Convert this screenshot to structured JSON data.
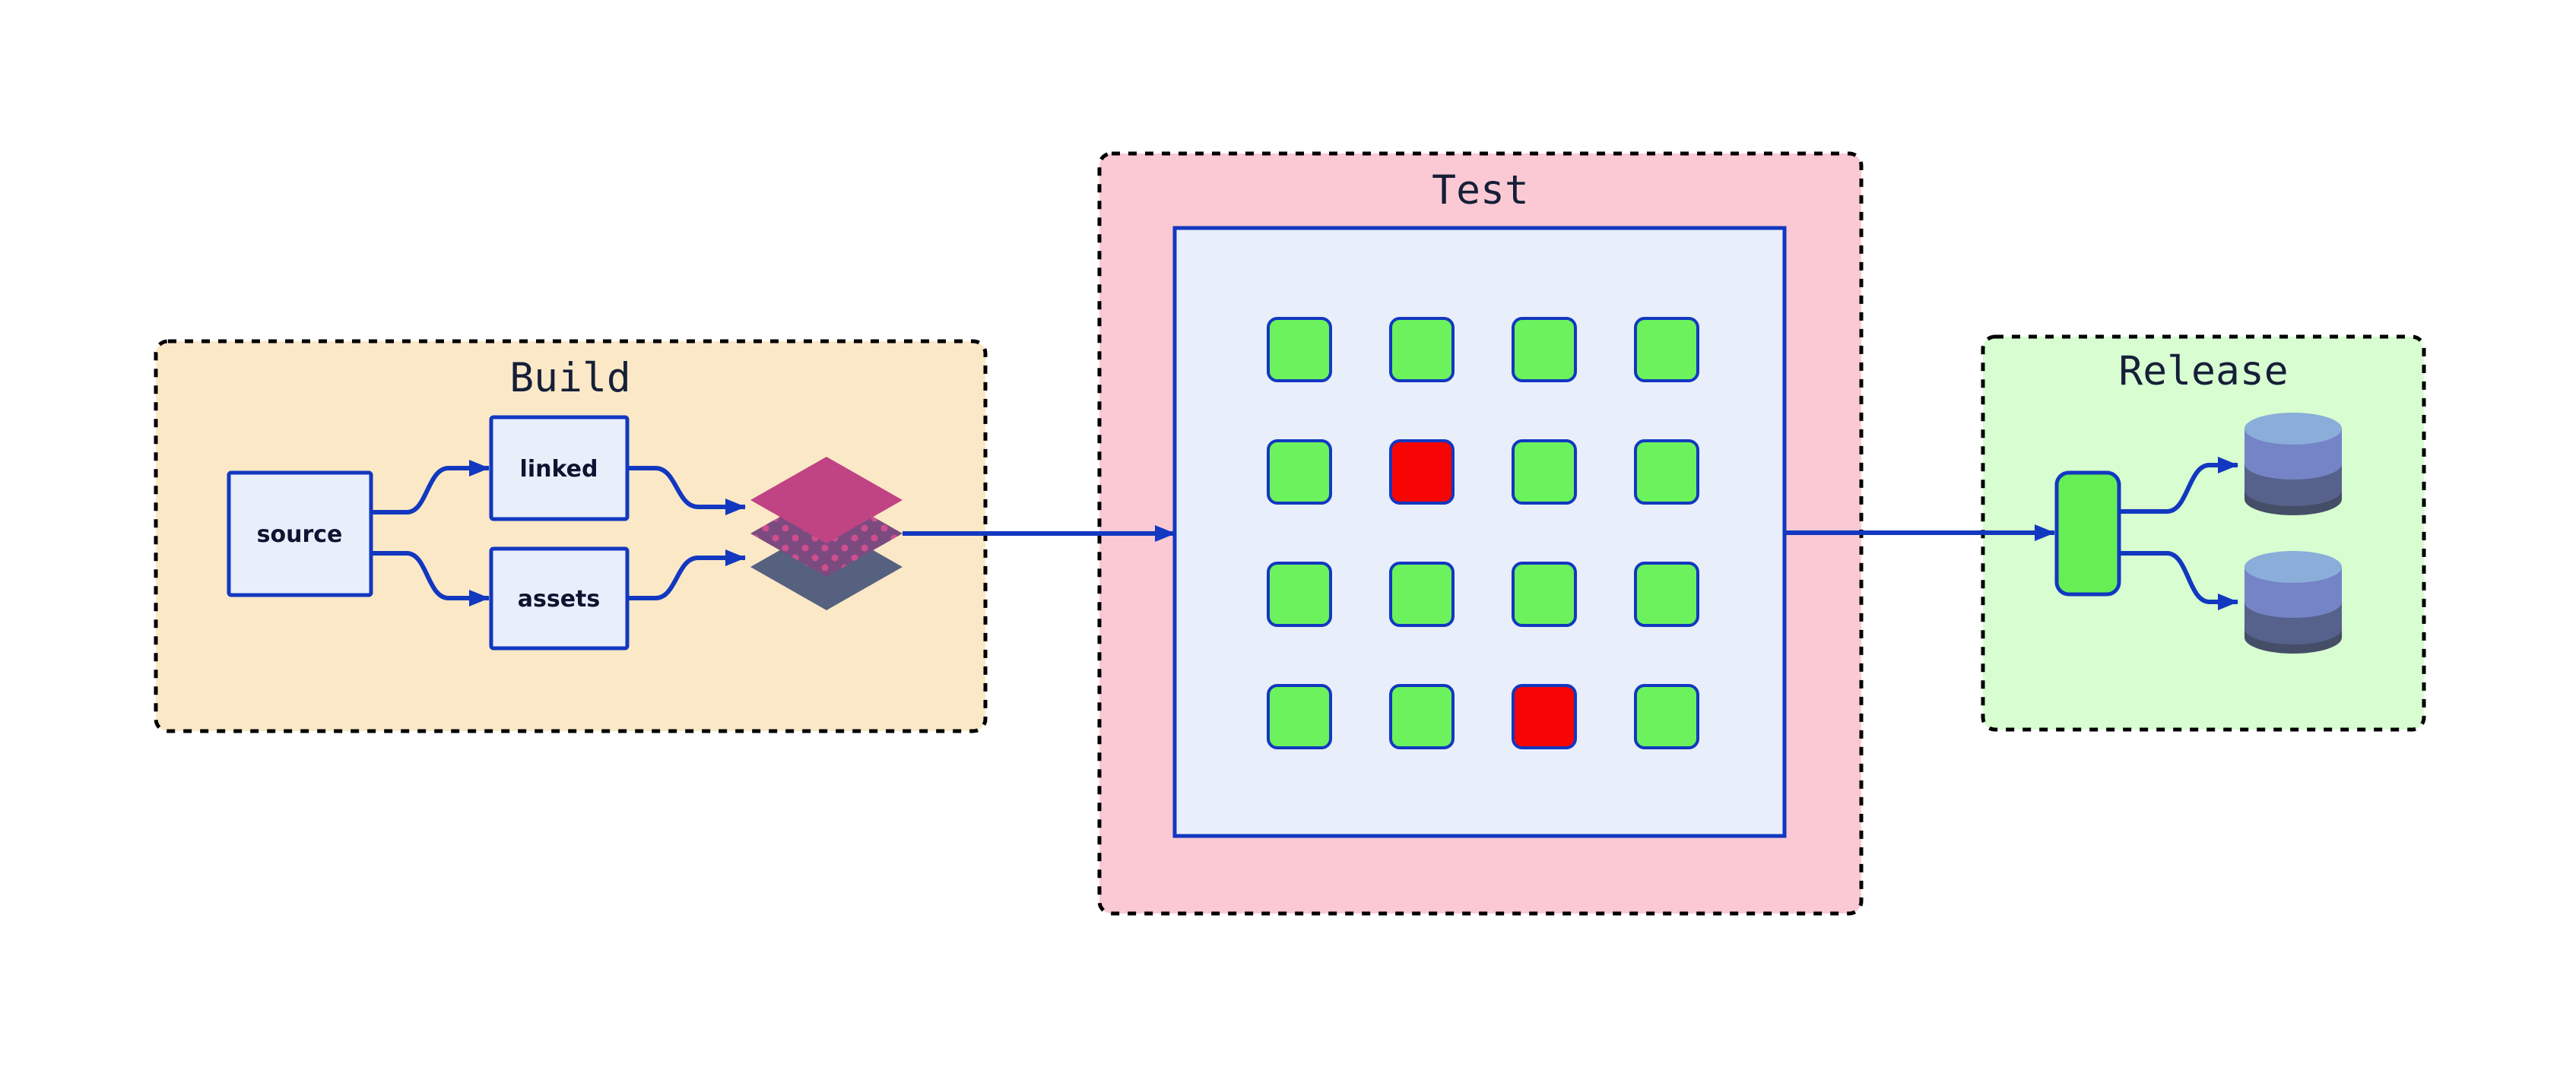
{
  "groups": {
    "build": {
      "label": "Build",
      "fill": "#fbe8c7"
    },
    "test": {
      "label": "Test",
      "fill": "#fbc9d4"
    },
    "release": {
      "label": "Release",
      "fill": "#d7fdd1"
    }
  },
  "nodes": {
    "source": {
      "label": "source"
    },
    "linked": {
      "label": "linked"
    },
    "assets": {
      "label": "assets"
    }
  },
  "icons": {
    "artifact": "layers-stack-icon",
    "deploy": "deploy-node",
    "storage": "database-icon"
  },
  "edges": [
    {
      "from": "source",
      "to": "linked"
    },
    {
      "from": "source",
      "to": "assets"
    },
    {
      "from": "linked",
      "to": "artifact-layers"
    },
    {
      "from": "assets",
      "to": "artifact-layers"
    },
    {
      "from": "artifact-layers",
      "to": "test-matrix"
    },
    {
      "from": "test-matrix",
      "to": "deploy"
    },
    {
      "from": "deploy",
      "to": "database-1"
    },
    {
      "from": "deploy",
      "to": "database-2"
    }
  ],
  "test_grid": {
    "rows": 4,
    "cols": 4,
    "statuses": [
      [
        "pass",
        "pass",
        "pass",
        "pass"
      ],
      [
        "pass",
        "fail",
        "pass",
        "pass"
      ],
      [
        "pass",
        "pass",
        "pass",
        "pass"
      ],
      [
        "pass",
        "pass",
        "fail",
        "pass"
      ]
    ],
    "status_colors": {
      "pass": "#6cf25c",
      "fail": "#f70505"
    }
  },
  "colors": {
    "page_bg": "#ffffff",
    "group_border": "#000000",
    "stroke_blue": "#1238c0",
    "node_fill": "#e9eefb",
    "title_text": "#161f38",
    "node_text": "#0d1430",
    "pill_fill": "#66ef55",
    "diamond_top": "#c04384",
    "diamond_mid": "#7b4b80",
    "diamond_dot": "#cf4e8e",
    "diamond_bottom": "#566180",
    "db_top": "#8aadd9",
    "db_band1": "#7484c6",
    "db_band2": "#56628b",
    "db_band3": "#454e67"
  }
}
